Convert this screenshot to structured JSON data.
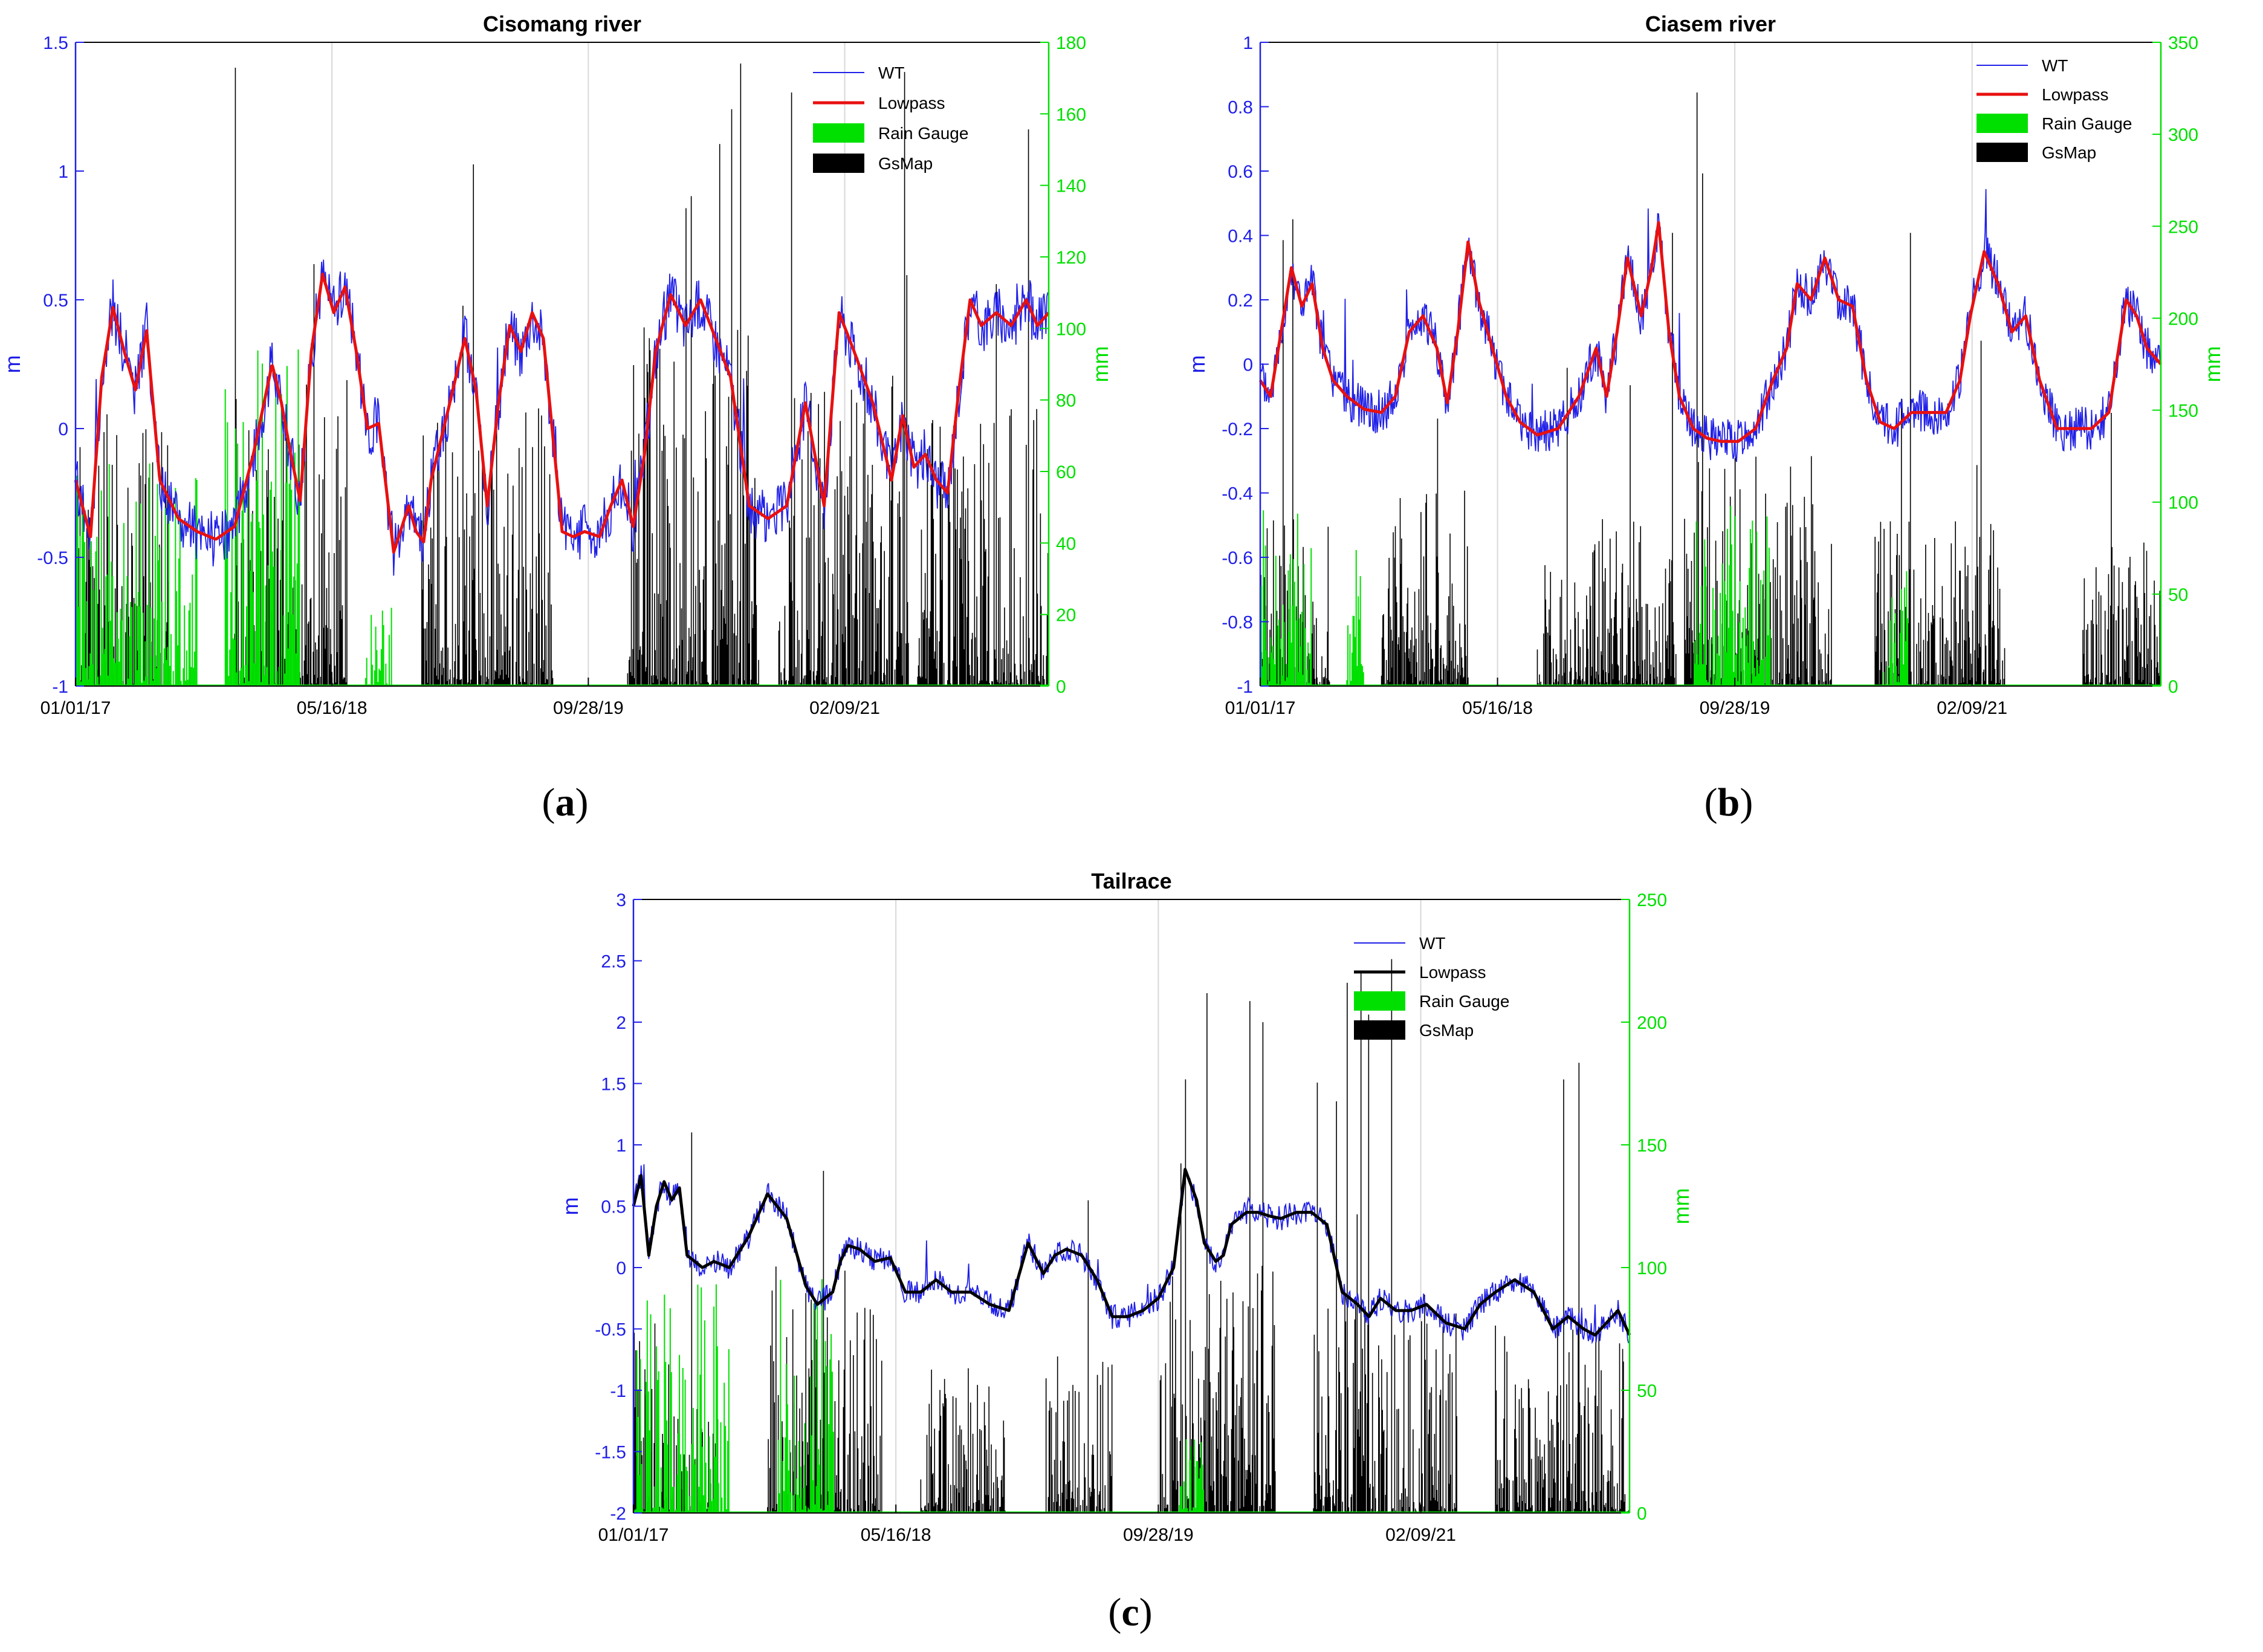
{
  "colors": {
    "wt": "#2020e8",
    "lowpass_red": "#e81010",
    "lowpass_black": "#000000",
    "rain_gauge": "#00e000",
    "gsmap": "#000000",
    "left_axis": "#2020e8",
    "right_axis": "#00e000"
  },
  "panels": [
    {
      "letter": "a"
    },
    {
      "letter": "b"
    },
    {
      "letter": "c"
    }
  ],
  "chart_data": [
    {
      "type": "line+bar",
      "title": "Cisomang river",
      "ylabel_left": "m",
      "ylabel_right": "mm",
      "ylim_left": [
        -1,
        1.5
      ],
      "ylim_right": [
        0,
        180
      ],
      "left_ticks": [
        "-1",
        "-0.5",
        "0",
        "0.5",
        "1",
        "1.5"
      ],
      "right_ticks": [
        "0",
        "20",
        "40",
        "60",
        "80",
        "100",
        "120",
        "140",
        "160",
        "180"
      ],
      "x_tick_labels": [
        "01/01/17",
        "05/16/18",
        "09/28/19",
        "02/09/21"
      ],
      "x_range_years": [
        2017.0,
        2022.2
      ],
      "legend": [
        "WT",
        "Lowpass",
        "Rain Gauge",
        "GsMap"
      ],
      "legend_position": "top-right",
      "grid": "x-only",
      "series": [
        {
          "name": "Lowpass",
          "x": [
            2017.0,
            2017.08,
            2017.14,
            2017.2,
            2017.26,
            2017.32,
            2017.38,
            2017.45,
            2017.55,
            2017.65,
            2017.75,
            2017.85,
            2017.95,
            2018.05,
            2018.1,
            2018.15,
            2018.2,
            2018.26,
            2018.32,
            2018.38,
            2018.44,
            2018.5,
            2018.56,
            2018.62,
            2018.7,
            2018.78,
            2018.82,
            2018.86,
            2018.9,
            2019.0,
            2019.08,
            2019.14,
            2019.2,
            2019.26,
            2019.32,
            2019.38,
            2019.44,
            2019.5,
            2019.56,
            2019.6,
            2019.66,
            2019.72,
            2019.8,
            2019.86,
            2019.92,
            2019.98,
            2020.04,
            2020.1,
            2020.18,
            2020.26,
            2020.34,
            2020.42,
            2020.5,
            2020.6,
            2020.7,
            2020.8,
            2020.9,
            2021.0,
            2021.08,
            2021.16,
            2021.26,
            2021.36,
            2021.42,
            2021.48,
            2021.54,
            2021.6,
            2021.66,
            2021.72,
            2021.78,
            2021.84,
            2021.92,
            2022.0,
            2022.08,
            2022.14,
            2022.2
          ],
          "values": [
            -0.2,
            -0.42,
            0.2,
            0.47,
            0.3,
            0.15,
            0.38,
            -0.2,
            -0.35,
            -0.4,
            -0.43,
            -0.38,
            -0.1,
            0.25,
            0.1,
            -0.1,
            -0.28,
            0.3,
            0.6,
            0.45,
            0.55,
            0.3,
            0.0,
            0.02,
            -0.48,
            -0.3,
            -0.4,
            -0.44,
            -0.2,
            0.1,
            0.35,
            0.15,
            -0.3,
            0.1,
            0.4,
            0.3,
            0.45,
            0.35,
            -0.1,
            -0.4,
            -0.42,
            -0.4,
            -0.42,
            -0.3,
            -0.2,
            -0.38,
            -0.1,
            0.3,
            0.52,
            0.4,
            0.5,
            0.35,
            0.2,
            -0.3,
            -0.35,
            -0.3,
            0.1,
            -0.3,
            0.45,
            0.3,
            0.1,
            -0.2,
            0.05,
            -0.15,
            -0.1,
            -0.2,
            -0.25,
            0.15,
            0.5,
            0.4,
            0.45,
            0.4,
            0.5,
            0.4,
            0.45
          ]
        },
        {
          "name": "Rain Gauge active spans",
          "x": [
            [
              2017.0,
              2017.65
            ],
            [
              2017.8,
              2018.2
            ],
            [
              2018.55,
              2018.7
            ]
          ],
          "values": [
            40,
            60,
            15
          ]
        },
        {
          "name": "GsMap active spans",
          "x": [
            [
              2017.0,
              2017.5
            ],
            [
              2017.85,
              2018.45
            ],
            [
              2018.85,
              2019.55
            ],
            [
              2019.95,
              2020.65
            ],
            [
              2020.75,
              2021.45
            ],
            [
              2021.5,
              2022.2
            ]
          ],
          "values": [
            30,
            35,
            30,
            40,
            35,
            30
          ]
        }
      ]
    },
    {
      "type": "line+bar",
      "title": "Ciasem river",
      "ylabel_left": "m",
      "ylabel_right": "mm",
      "ylim_left": [
        -1,
        1
      ],
      "ylim_right": [
        0,
        350
      ],
      "left_ticks": [
        "-1",
        "-0.8",
        "-0.6",
        "-0.4",
        "-0.2",
        "0",
        "0.2",
        "0.4",
        "0.6",
        "0.8",
        "1"
      ],
      "right_ticks": [
        "0",
        "50",
        "100",
        "150",
        "200",
        "250",
        "300",
        "350"
      ],
      "x_tick_labels": [
        "01/01/17",
        "05/16/18",
        "09/28/19",
        "02/09/21"
      ],
      "x_range_years": [
        2017.0,
        2022.2
      ],
      "legend": [
        "WT",
        "Lowpass",
        "Rain Gauge",
        "GsMap"
      ],
      "legend_position": "top-right",
      "grid": "x-only",
      "series": [
        {
          "name": "Lowpass",
          "x": [
            2017.0,
            2017.06,
            2017.12,
            2017.18,
            2017.24,
            2017.3,
            2017.36,
            2017.42,
            2017.5,
            2017.6,
            2017.7,
            2017.78,
            2017.86,
            2017.94,
            2018.02,
            2018.08,
            2018.14,
            2018.2,
            2018.26,
            2018.34,
            2018.42,
            2018.5,
            2018.6,
            2018.72,
            2018.84,
            2018.94,
            2019.0,
            2019.06,
            2019.12,
            2019.2,
            2019.26,
            2019.3,
            2019.36,
            2019.42,
            2019.5,
            2019.58,
            2019.66,
            2019.76,
            2019.86,
            2019.96,
            2020.04,
            2020.1,
            2020.18,
            2020.26,
            2020.34,
            2020.42,
            2020.5,
            2020.58,
            2020.66,
            2020.76,
            2020.86,
            2020.96,
            2021.04,
            2021.1,
            2021.18,
            2021.26,
            2021.34,
            2021.42,
            2021.5,
            2021.6,
            2021.7,
            2021.8,
            2021.9,
            2022.0,
            2022.06,
            2022.12,
            2022.2
          ],
          "values": [
            -0.05,
            -0.1,
            0.1,
            0.3,
            0.18,
            0.25,
            0.05,
            -0.05,
            -0.1,
            -0.14,
            -0.15,
            -0.1,
            0.1,
            0.15,
            0.05,
            -0.12,
            0.1,
            0.38,
            0.2,
            0.05,
            -0.1,
            -0.18,
            -0.22,
            -0.2,
            -0.1,
            0.05,
            -0.1,
            0.1,
            0.33,
            0.15,
            0.3,
            0.44,
            0.1,
            -0.1,
            -0.2,
            -0.23,
            -0.24,
            -0.24,
            -0.2,
            -0.05,
            0.05,
            0.25,
            0.2,
            0.33,
            0.2,
            0.18,
            -0.05,
            -0.18,
            -0.2,
            -0.15,
            -0.15,
            -0.15,
            -0.05,
            0.15,
            0.35,
            0.25,
            0.1,
            0.15,
            -0.05,
            -0.2,
            -0.2,
            -0.2,
            -0.15,
            0.2,
            0.15,
            0.05,
            0.0
          ]
        },
        {
          "name": "Rain Gauge active spans",
          "x": [
            [
              2017.0,
              2017.3
            ],
            [
              2017.5,
              2017.6
            ],
            [
              2019.5,
              2019.95
            ],
            [
              2020.6,
              2020.75
            ]
          ],
          "values": [
            60,
            60,
            70,
            40
          ]
        },
        {
          "name": "GsMap active spans",
          "x": [
            [
              2017.0,
              2017.4
            ],
            [
              2017.7,
              2018.2
            ],
            [
              2018.6,
              2019.4
            ],
            [
              2019.45,
              2020.3
            ],
            [
              2020.55,
              2021.3
            ],
            [
              2021.75,
              2022.2
            ]
          ],
          "values": [
            40,
            45,
            35,
            50,
            35,
            30
          ]
        }
      ]
    },
    {
      "type": "line+bar",
      "title": "Tailrace",
      "ylabel_left": "m",
      "ylabel_right": "mm",
      "ylim_left": [
        -2,
        3
      ],
      "ylim_right": [
        0,
        250
      ],
      "left_ticks": [
        "-2",
        "-1.5",
        "-1",
        "-0.5",
        "0",
        "0.5",
        "1",
        "1.5",
        "2",
        "2.5",
        "3"
      ],
      "right_ticks": [
        "0",
        "50",
        "100",
        "150",
        "200",
        "250"
      ],
      "x_tick_labels": [
        "01/01/17",
        "05/16/18",
        "09/28/19",
        "02/09/21"
      ],
      "x_range_years": [
        2017.0,
        2022.2
      ],
      "legend": [
        "WT",
        "Lowpass",
        "Rain Gauge",
        "GsMap"
      ],
      "legend_position": "top-right",
      "grid": "x-only",
      "series": [
        {
          "name": "Lowpass",
          "x": [
            2017.0,
            2017.04,
            2017.08,
            2017.12,
            2017.16,
            2017.2,
            2017.24,
            2017.28,
            2017.32,
            2017.36,
            2017.42,
            2017.5,
            2017.6,
            2017.7,
            2017.8,
            2017.9,
            2017.96,
            2018.0,
            2018.04,
            2018.08,
            2018.12,
            2018.18,
            2018.26,
            2018.34,
            2018.42,
            2018.5,
            2018.58,
            2018.66,
            2018.76,
            2018.86,
            2018.96,
            2019.06,
            2019.14,
            2019.2,
            2019.26,
            2019.34,
            2019.42,
            2019.5,
            2019.58,
            2019.66,
            2019.74,
            2019.82,
            2019.88,
            2019.94,
            2019.98,
            2020.04,
            2020.08,
            2020.12,
            2020.16,
            2020.2,
            2020.26,
            2020.32,
            2020.38,
            2020.46,
            2020.54,
            2020.62,
            2020.7,
            2020.78,
            2020.84,
            2020.9,
            2020.98,
            2021.06,
            2021.14,
            2021.24,
            2021.34,
            2021.42,
            2021.5,
            2021.6,
            2021.7,
            2021.8,
            2021.88,
            2021.96,
            2022.02,
            2022.08,
            2022.14,
            2022.2
          ],
          "values": [
            0.5,
            0.75,
            0.1,
            0.5,
            0.7,
            0.55,
            0.65,
            0.1,
            0.05,
            0.0,
            0.05,
            0.0,
            0.25,
            0.6,
            0.4,
            -0.15,
            -0.3,
            -0.25,
            -0.2,
            0.05,
            0.18,
            0.15,
            0.05,
            0.08,
            -0.2,
            -0.2,
            -0.1,
            -0.2,
            -0.2,
            -0.3,
            -0.35,
            0.2,
            -0.05,
            0.1,
            0.15,
            0.1,
            -0.1,
            -0.4,
            -0.4,
            -0.35,
            -0.25,
            0.0,
            0.8,
            0.55,
            0.2,
            0.05,
            0.1,
            0.35,
            0.4,
            0.45,
            0.45,
            0.42,
            0.4,
            0.45,
            0.45,
            0.35,
            -0.2,
            -0.3,
            -0.4,
            -0.25,
            -0.35,
            -0.35,
            -0.3,
            -0.45,
            -0.5,
            -0.3,
            -0.2,
            -0.1,
            -0.2,
            -0.5,
            -0.4,
            -0.5,
            -0.55,
            -0.45,
            -0.35,
            -0.55
          ]
        },
        {
          "name": "Rain Gauge active spans",
          "x": [
            [
              2017.0,
              2017.5
            ],
            [
              2017.75,
              2018.05
            ],
            [
              2019.85,
              2019.98
            ]
          ],
          "values": [
            60,
            70,
            20
          ]
        },
        {
          "name": "GsMap active spans",
          "x": [
            [
              2017.0,
              2017.45
            ],
            [
              2017.7,
              2018.3
            ],
            [
              2018.5,
              2018.95
            ],
            [
              2019.15,
              2019.5
            ],
            [
              2019.75,
              2020.35
            ],
            [
              2020.55,
              2021.3
            ],
            [
              2021.5,
              2022.2
            ]
          ],
          "values": [
            30,
            40,
            25,
            25,
            40,
            35,
            30
          ]
        }
      ]
    }
  ]
}
